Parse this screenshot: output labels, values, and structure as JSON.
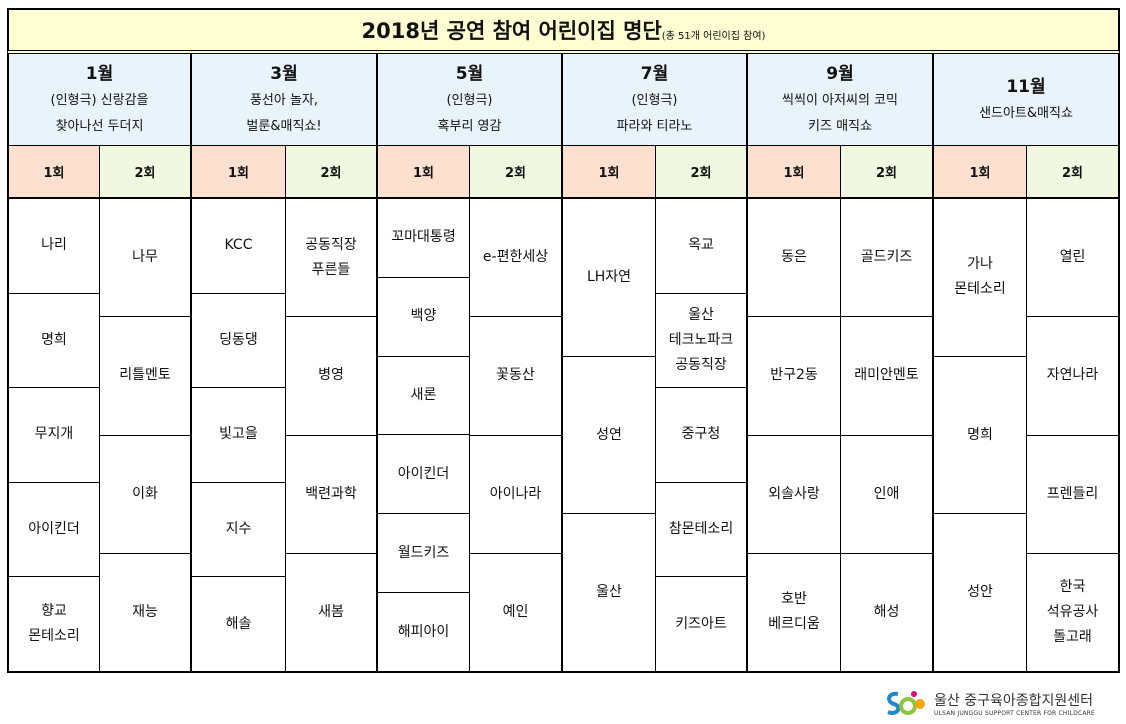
{
  "title": {
    "main": "2018년 공연 참여 어린이집 명단",
    "sub": "(총 51개 어린이집 참여)"
  },
  "session_labels": [
    "1회",
    "2회"
  ],
  "months": [
    {
      "month": "1월",
      "show": [
        "(인형극) 신랑감을",
        "찾아나선 두더지"
      ],
      "sessions": [
        [
          "나리",
          "명희",
          "무지개",
          "아이킨더",
          "향교\n몬테소리"
        ],
        [
          "나무",
          "리틀멘토",
          "이화",
          "재능"
        ]
      ]
    },
    {
      "month": "3월",
      "show": [
        "풍선아 놀자,",
        "벌룬&매직쇼!"
      ],
      "sessions": [
        [
          "KCC",
          "딩동댕",
          "빛고을",
          "지수",
          "해솔"
        ],
        [
          "공동직장\n푸른들",
          "병영",
          "백련과학",
          "새봄"
        ]
      ]
    },
    {
      "month": "5월",
      "show": [
        "(인형극)",
        "혹부리 영감"
      ],
      "sessions": [
        [
          "꼬마대통령",
          "백양",
          "새론",
          "아이킨더",
          "월드키즈",
          "해피아이"
        ],
        [
          "e-편한세상",
          "꽃동산",
          "아이나라",
          "예인"
        ]
      ]
    },
    {
      "month": "7월",
      "show": [
        "(인형극)",
        "파라와 티라노"
      ],
      "sessions": [
        [
          "LH자연",
          "성연",
          "울산"
        ],
        [
          "옥교",
          "울산\n테크노파크\n공동직장",
          "중구청",
          "참몬테소리",
          "키즈아트"
        ]
      ]
    },
    {
      "month": "9월",
      "show": [
        "씩씩이 아저씨의 코믹",
        "키즈 매직쇼"
      ],
      "sessions": [
        [
          "동은",
          "반구2동",
          "외솔사랑",
          "호반\n베르디움"
        ],
        [
          "골드키즈",
          "래미안멘토",
          "인애",
          "해성"
        ]
      ]
    },
    {
      "month": "11월",
      "show": [
        "샌드아트&매직쇼"
      ],
      "sessions": [
        [
          "가나\n몬테소리",
          "명희",
          "성안"
        ],
        [
          "열린",
          "자연나라",
          "프렌들리",
          "한국\n석유공사\n돌고래"
        ]
      ]
    }
  ],
  "footer": {
    "logo_ko": "울산 중구육아종합지원센터",
    "logo_en": "ULSAN JUNGGU SUPPORT CENTER FOR CHILDCARE"
  },
  "colors": {
    "title_bg": "#fffdd2",
    "month_bg": "#e9f4fa",
    "session1_bg": "#fde0cf",
    "session2_bg": "#f1f8e2"
  }
}
